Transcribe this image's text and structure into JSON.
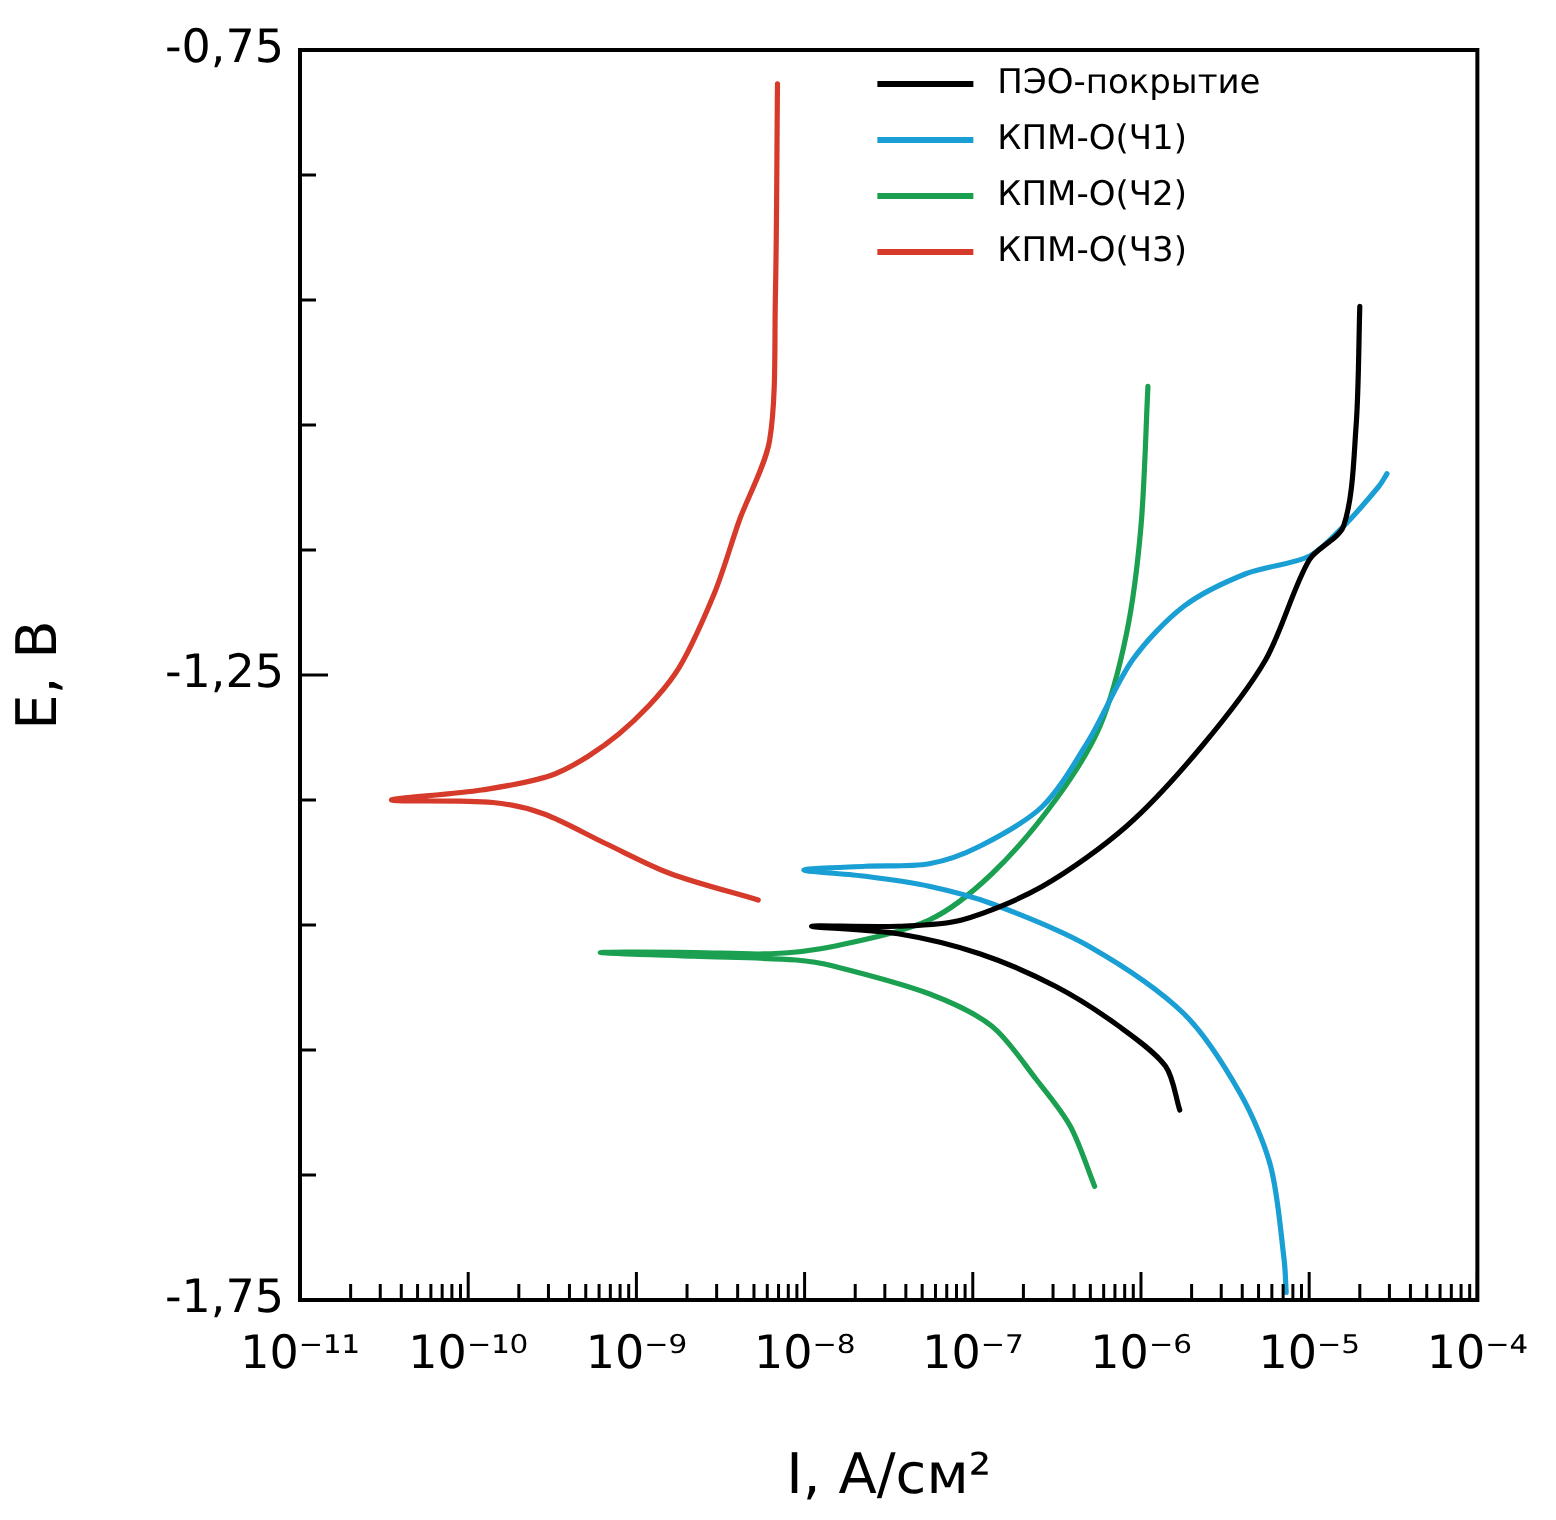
{
  "chart_data": {
    "type": "line",
    "xlabel": "I, A/см²",
    "ylabel": "E, B",
    "log": "x",
    "legend": "top right",
    "xlim": [
      1e-11,
      0.0001
    ],
    "ylim": [
      -1.75,
      -0.75
    ],
    "xticks": [
      {
        "value": 1e-11,
        "label": "10⁻¹¹"
      },
      {
        "value": 2e-11,
        "label": null
      },
      {
        "value": 3e-11,
        "label": null
      },
      {
        "value": 4e-11,
        "label": null
      },
      {
        "value": 5e-11,
        "label": null
      },
      {
        "value": 6e-11,
        "label": null
      },
      {
        "value": 7e-11,
        "label": null
      },
      {
        "value": 8e-11,
        "label": null
      },
      {
        "value": 9e-11,
        "label": null
      },
      {
        "value": 1e-10,
        "label": "10⁻¹⁰"
      },
      {
        "value": 2e-10,
        "label": null
      },
      {
        "value": 3e-10,
        "label": null
      },
      {
        "value": 4e-10,
        "label": null
      },
      {
        "value": 5e-10,
        "label": null
      },
      {
        "value": 6e-10,
        "label": null
      },
      {
        "value": 7e-10,
        "label": null
      },
      {
        "value": 8e-10,
        "label": null
      },
      {
        "value": 9e-10,
        "label": null
      },
      {
        "value": 1e-09,
        "label": "10⁻⁹"
      },
      {
        "value": 2e-09,
        "label": null
      },
      {
        "value": 3e-09,
        "label": null
      },
      {
        "value": 4e-09,
        "label": null
      },
      {
        "value": 5e-09,
        "label": null
      },
      {
        "value": 6e-09,
        "label": null
      },
      {
        "value": 7e-09,
        "label": null
      },
      {
        "value": 8e-09,
        "label": null
      },
      {
        "value": 9e-09,
        "label": null
      },
      {
        "value": 1e-08,
        "label": "10⁻⁸"
      },
      {
        "value": 2e-08,
        "label": null
      },
      {
        "value": 3e-08,
        "label": null
      },
      {
        "value": 4e-08,
        "label": null
      },
      {
        "value": 5e-08,
        "label": null
      },
      {
        "value": 6e-08,
        "label": null
      },
      {
        "value": 7e-08,
        "label": null
      },
      {
        "value": 8e-08,
        "label": null
      },
      {
        "value": 9e-08,
        "label": null
      },
      {
        "value": 1e-07,
        "label": "10⁻⁷"
      },
      {
        "value": 2e-07,
        "label": null
      },
      {
        "value": 3e-07,
        "label": null
      },
      {
        "value": 4e-07,
        "label": null
      },
      {
        "value": 5e-07,
        "label": null
      },
      {
        "value": 6e-07,
        "label": null
      },
      {
        "value": 7e-07,
        "label": null
      },
      {
        "value": 8e-07,
        "label": null
      },
      {
        "value": 9e-07,
        "label": null
      },
      {
        "value": 1e-06,
        "label": "10⁻⁶"
      },
      {
        "value": 2e-06,
        "label": null
      },
      {
        "value": 3e-06,
        "label": null
      },
      {
        "value": 4e-06,
        "label": null
      },
      {
        "value": 5e-06,
        "label": null
      },
      {
        "value": 6e-06,
        "label": null
      },
      {
        "value": 7e-06,
        "label": null
      },
      {
        "value": 8e-06,
        "label": null
      },
      {
        "value": 9e-06,
        "label": null
      },
      {
        "value": 1e-05,
        "label": "10⁻⁵"
      },
      {
        "value": 2e-05,
        "label": null
      },
      {
        "value": 3e-05,
        "label": null
      },
      {
        "value": 4e-05,
        "label": null
      },
      {
        "value": 5e-05,
        "label": null
      },
      {
        "value": 6e-05,
        "label": null
      },
      {
        "value": 7e-05,
        "label": null
      },
      {
        "value": 8e-05,
        "label": null
      },
      {
        "value": 9e-05,
        "label": null
      },
      {
        "value": 0.0001,
        "label": "10⁻⁴"
      }
    ],
    "yticks": [
      {
        "value": -1.75,
        "label": "-1,75"
      },
      {
        "value": -1.65,
        "label": null
      },
      {
        "value": -1.55,
        "label": null
      },
      {
        "value": -1.45,
        "label": null
      },
      {
        "value": -1.35,
        "label": null
      },
      {
        "value": -1.25,
        "label": "-1,25"
      },
      {
        "value": -1.15,
        "label": null
      },
      {
        "value": -1.05,
        "label": null
      },
      {
        "value": -0.95,
        "label": null
      },
      {
        "value": -0.85,
        "label": null
      },
      {
        "value": -0.75,
        "label": "-0,75"
      }
    ],
    "series": [
      {
        "name": "ПЭО-покрытие",
        "color": "#000000",
        "x": [
          2e-05,
          1.9e-05,
          1.6e-05,
          1e-05,
          5.5e-06,
          2.3e-06,
          8.2e-07,
          2.6e-07,
          8.6e-08,
          3.6e-08,
          1.1e-08,
          3.6e-08,
          1.1e-07,
          3.1e-07,
          7.4e-07,
          1.4e-06,
          1.7e-06
        ],
        "values": [
          -0.955,
          -1.051,
          -1.131,
          -1.158,
          -1.238,
          -1.307,
          -1.371,
          -1.419,
          -1.446,
          -1.451,
          -1.451,
          -1.457,
          -1.473,
          -1.499,
          -1.531,
          -1.563,
          -1.598
        ]
      },
      {
        "name": "КПМ-О(Ч1)",
        "color": "#1a9fd4",
        "x": [
          2.9e-05,
          2.6e-05,
          1.6e-05,
          1e-05,
          4.2e-06,
          1.8e-06,
          8.9e-07,
          4.9e-07,
          2.6e-07,
          1.1e-07,
          5.5e-08,
          2.3e-08,
          9.9e-09,
          2.3e-08,
          5.5e-08,
          1.3e-07,
          4.9e-07,
          1.8e-06,
          3.9e-06,
          5.9e-06,
          7.1e-06,
          7.3e-06
        ],
        "values": [
          -1.089,
          -1.099,
          -1.131,
          -1.155,
          -1.169,
          -1.195,
          -1.238,
          -1.302,
          -1.355,
          -1.387,
          -1.401,
          -1.403,
          -1.406,
          -1.411,
          -1.419,
          -1.433,
          -1.467,
          -1.521,
          -1.585,
          -1.643,
          -1.718,
          -1.744
        ]
      },
      {
        "name": "КПМ-О(Ч2)",
        "color": "#1aa050",
        "x": [
          1.1e-06,
          1e-06,
          8.2e-07,
          5.7e-07,
          3.1e-07,
          1.3e-07,
          5.5e-08,
          1.5e-08,
          6.3e-09,
          2.2e-09,
          6.1e-10,
          2.2e-09,
          8.9e-09,
          1.5e-08,
          5.5e-08,
          1.3e-07,
          2.4e-07,
          3.8e-07,
          5.3e-07
        ],
        "values": [
          -1.019,
          -1.131,
          -1.217,
          -1.291,
          -1.35,
          -1.409,
          -1.446,
          -1.467,
          -1.473,
          -1.472,
          -1.472,
          -1.475,
          -1.478,
          -1.483,
          -1.505,
          -1.531,
          -1.574,
          -1.611,
          -1.659
        ]
      },
      {
        "name": "КПМ-О(Ч3)",
        "color": "#d63a2a",
        "x": [
          6.9e-09,
          6.7e-09,
          6.2e-09,
          4.1e-09,
          2.9e-09,
          1.7e-09,
          7.9e-10,
          3.3e-10,
          1.2e-10,
          3.5e-11,
          1.4e-10,
          2.8e-10,
          6.6e-10,
          1.6e-09,
          5.3e-09
        ],
        "values": [
          -0.777,
          -0.95,
          -1.062,
          -1.126,
          -1.185,
          -1.249,
          -1.297,
          -1.329,
          -1.342,
          -1.35,
          -1.352,
          -1.361,
          -1.385,
          -1.409,
          -1.43
        ]
      }
    ]
  }
}
